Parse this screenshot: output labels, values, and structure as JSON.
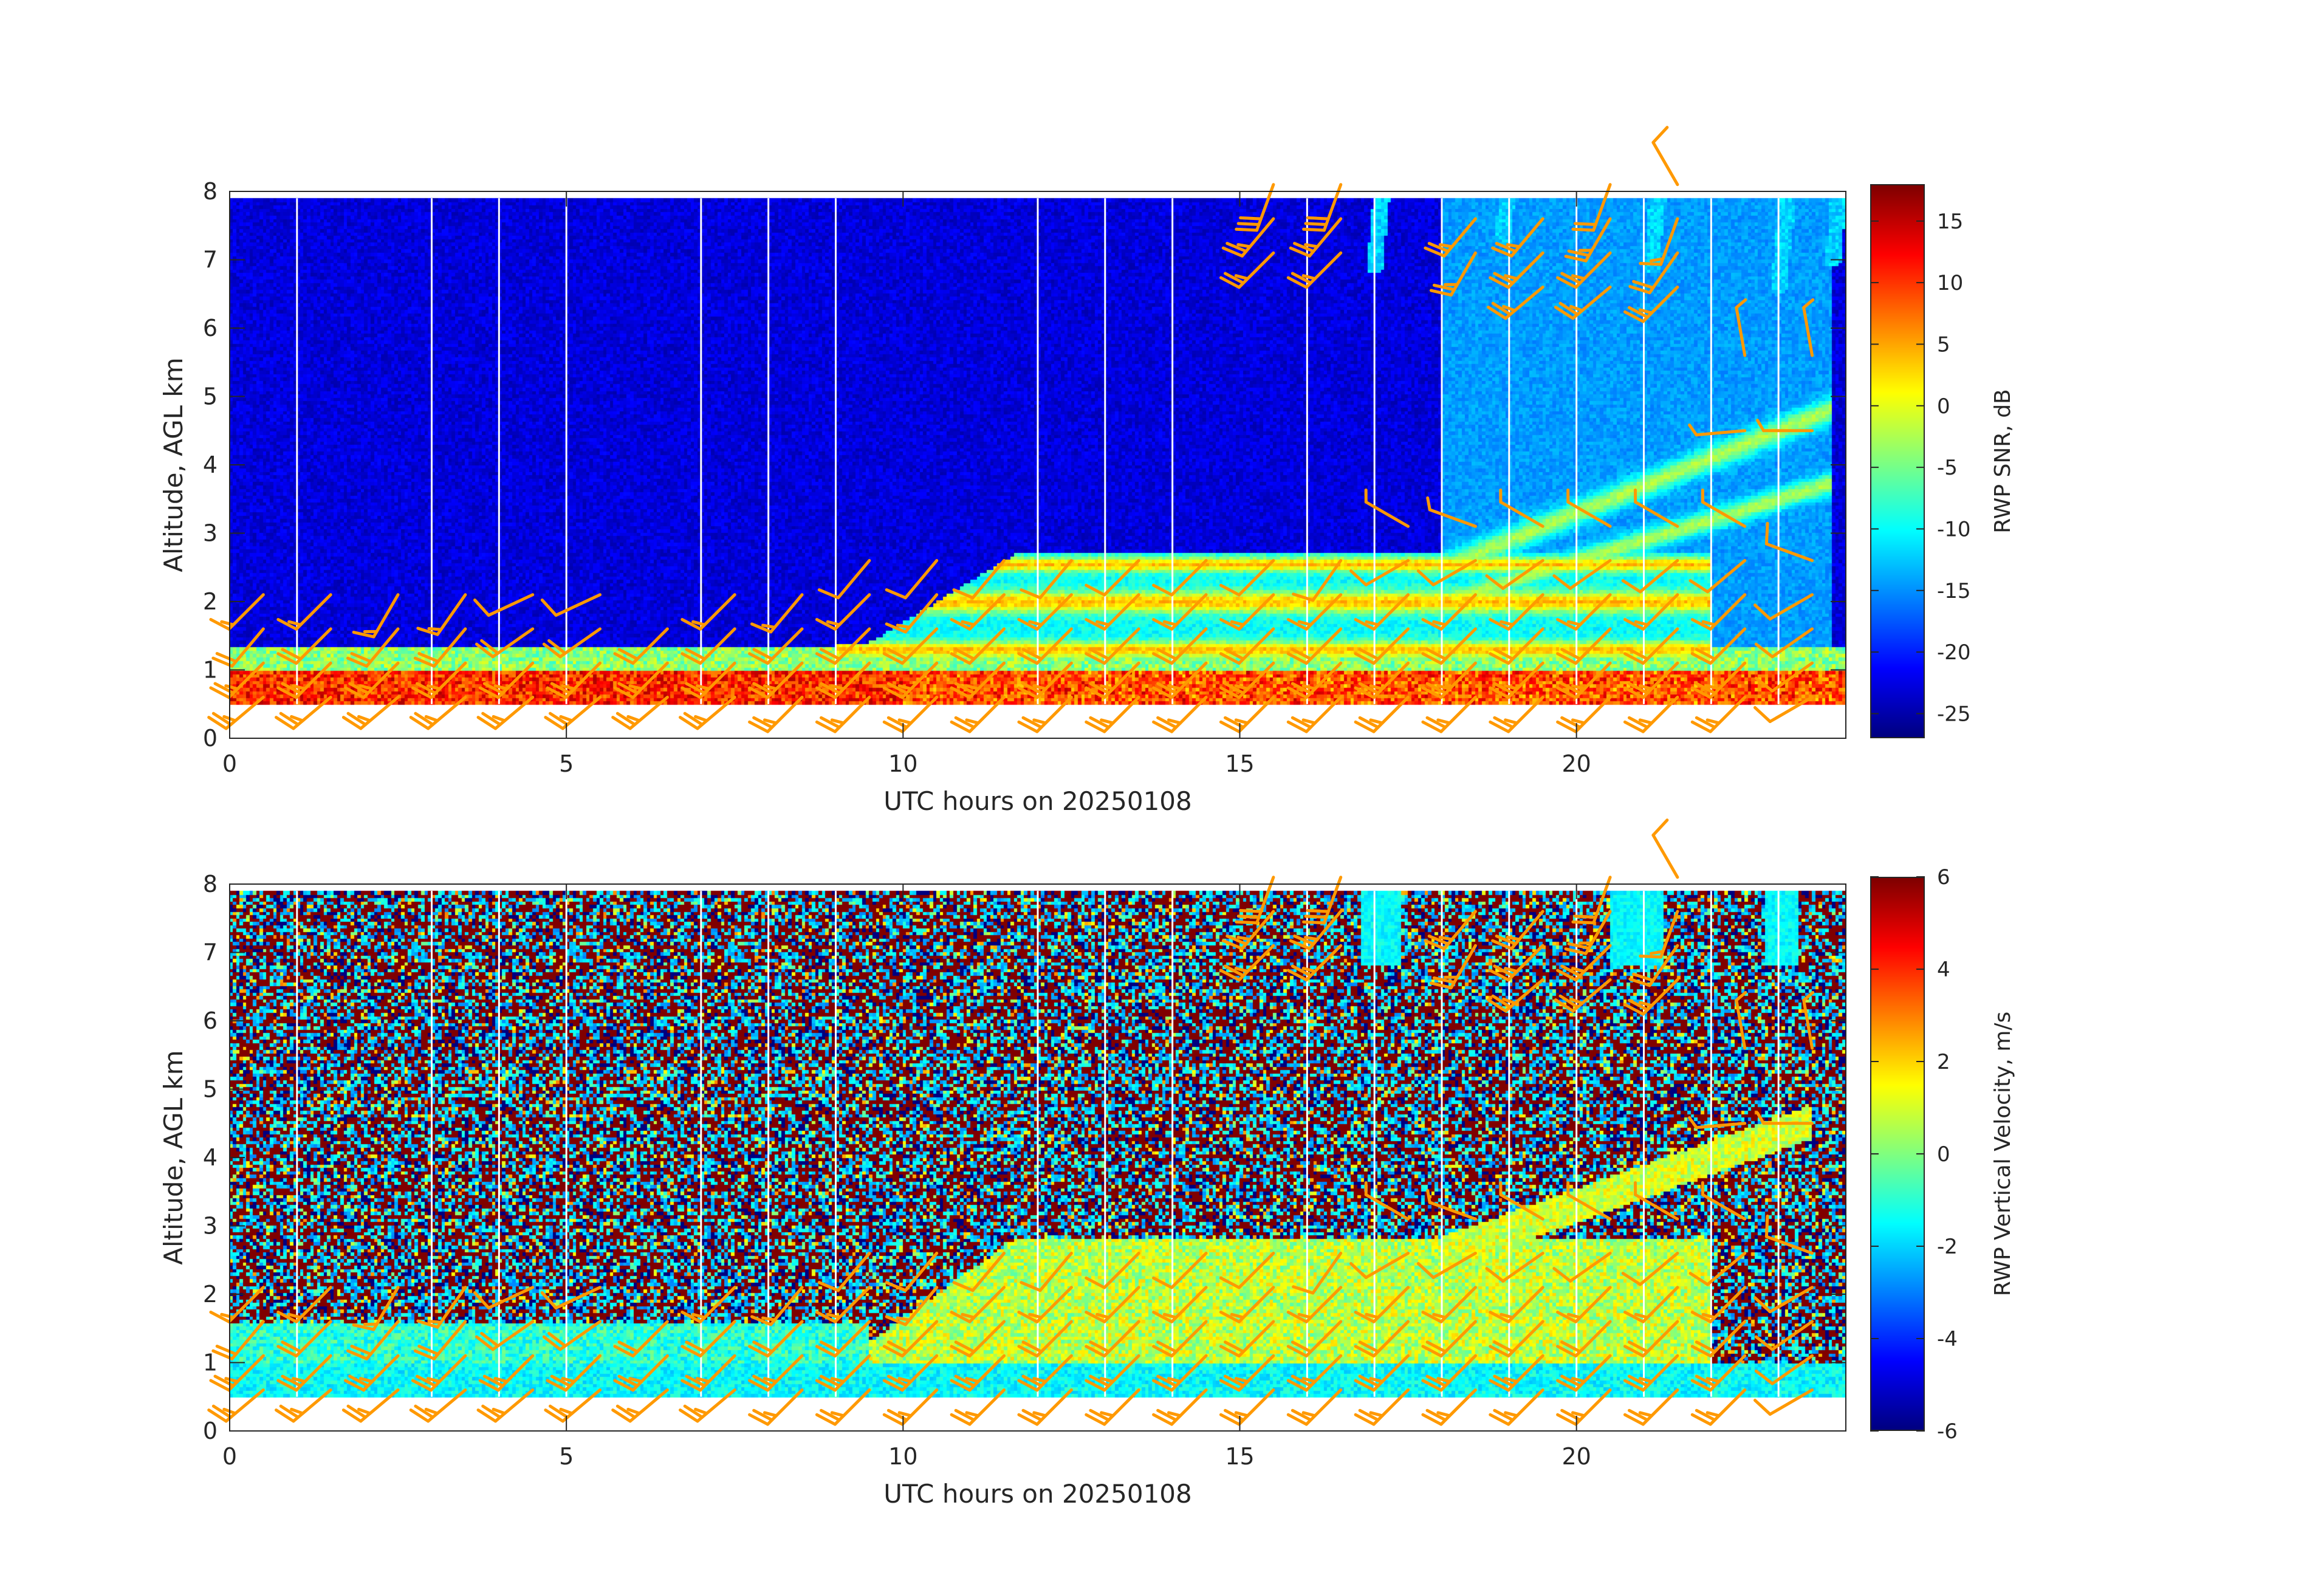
{
  "figure": {
    "background": "#ffffff",
    "barb_color": "#ff9900"
  },
  "chart_data": [
    {
      "type": "heatmap",
      "name": "top",
      "xlabel": "UTC hours on 20250108",
      "ylabel": "Altitude, AGL km",
      "colorbar_label": "RWP SNR, dB",
      "xlim": [
        0,
        24
      ],
      "ylim": [
        0,
        8
      ],
      "xticks": [
        0,
        5,
        10,
        15,
        20
      ],
      "yticks": [
        0,
        1,
        2,
        3,
        4,
        5,
        6,
        7,
        8
      ],
      "clim": [
        -27,
        18
      ],
      "cbar_ticks": [
        -25,
        -20,
        -15,
        -10,
        -5,
        0,
        5,
        10,
        15
      ],
      "colormap": "jet",
      "data_altitude_range": [
        0.5,
        7.9
      ],
      "grid": false,
      "signal_features": [
        {
          "feature": "boundary-layer high SNR band",
          "hours": [
            0,
            24
          ],
          "altitude_km": [
            0.5,
            1.0
          ],
          "snr_db": 10
        },
        {
          "feature": "elevated layer",
          "hours": [
            9.5,
            22
          ],
          "altitude_km": [
            1.2,
            2.7
          ],
          "snr_db": 0
        },
        {
          "feature": "sloping layer",
          "hours": [
            18,
            23.5
          ],
          "altitude_km": [
            2.5,
            5.0
          ],
          "snr_db": -5
        },
        {
          "feature": "upper clear-air",
          "hours": [
            0,
            24
          ],
          "altitude_km": [
            2.5,
            7.9
          ],
          "snr_db": -23
        }
      ]
    },
    {
      "type": "heatmap",
      "name": "bottom",
      "xlabel": "UTC hours on 20250108",
      "ylabel": "Altitude, AGL km",
      "colorbar_label": "RWP Vertical Velocity, m/s",
      "xlim": [
        0,
        24
      ],
      "ylim": [
        0,
        8
      ],
      "xticks": [
        0,
        5,
        10,
        15,
        20
      ],
      "yticks": [
        0,
        1,
        2,
        3,
        4,
        5,
        6,
        7,
        8
      ],
      "clim": [
        -6,
        6
      ],
      "cbar_ticks": [
        -6,
        -4,
        -2,
        0,
        2,
        4,
        6
      ],
      "colormap": "jet",
      "data_altitude_range": [
        0.5,
        7.9
      ],
      "grid": false
    }
  ],
  "wind_barbs": {
    "units": "knots",
    "barb_times_hours": [
      0.5,
      1.5,
      2.5,
      3.5,
      4.5,
      5.5,
      6.5,
      7.5,
      8.5,
      9.5,
      10.5,
      11.5,
      12.5,
      13.5,
      14.5,
      15.5,
      16.5,
      17.5,
      18.5,
      19.5,
      20.5,
      21.5,
      22.5,
      23.5
    ],
    "vertical_line_hours": [
      1,
      3,
      4,
      5,
      7,
      8,
      9,
      12,
      13,
      14,
      16,
      17,
      18,
      19,
      20,
      21,
      22,
      23
    ],
    "barbs": [
      {
        "t": 0.5,
        "levels": [
          [
            0.6,
            230,
            25
          ],
          [
            1.1,
            225,
            25
          ],
          [
            1.6,
            220,
            20
          ],
          [
            2.1,
            225,
            15
          ]
        ]
      },
      {
        "t": 1.5,
        "levels": [
          [
            0.6,
            230,
            25
          ],
          [
            1.1,
            225,
            25
          ],
          [
            1.6,
            225,
            20
          ],
          [
            2.1,
            225,
            15
          ]
        ]
      },
      {
        "t": 2.5,
        "levels": [
          [
            0.6,
            230,
            25
          ],
          [
            1.1,
            225,
            25
          ],
          [
            1.6,
            220,
            20
          ],
          [
            2.1,
            210,
            15
          ]
        ]
      },
      {
        "t": 3.5,
        "levels": [
          [
            0.6,
            230,
            25
          ],
          [
            1.1,
            225,
            25
          ],
          [
            1.6,
            220,
            20
          ],
          [
            2.1,
            215,
            15
          ]
        ]
      },
      {
        "t": 4.5,
        "levels": [
          [
            0.6,
            230,
            25
          ],
          [
            1.1,
            225,
            25
          ],
          [
            1.6,
            235,
            20
          ],
          [
            2.1,
            245,
            10
          ]
        ]
      },
      {
        "t": 5.5,
        "levels": [
          [
            0.6,
            230,
            25
          ],
          [
            1.1,
            225,
            25
          ],
          [
            1.6,
            235,
            20
          ],
          [
            2.1,
            245,
            10
          ]
        ]
      },
      {
        "t": 6.5,
        "levels": [
          [
            0.6,
            230,
            25
          ],
          [
            1.1,
            225,
            25
          ],
          [
            1.6,
            225,
            20
          ]
        ]
      },
      {
        "t": 7.5,
        "levels": [
          [
            0.6,
            230,
            25
          ],
          [
            1.1,
            225,
            25
          ],
          [
            1.6,
            225,
            20
          ],
          [
            2.1,
            225,
            15
          ]
        ]
      },
      {
        "t": 8.5,
        "levels": [
          [
            0.6,
            225,
            25
          ],
          [
            1.1,
            225,
            25
          ],
          [
            1.6,
            225,
            20
          ],
          [
            2.1,
            220,
            15
          ]
        ]
      },
      {
        "t": 9.5,
        "levels": [
          [
            0.6,
            225,
            25
          ],
          [
            1.1,
            225,
            25
          ],
          [
            1.6,
            225,
            20
          ],
          [
            2.1,
            225,
            15
          ],
          [
            2.6,
            220,
            10
          ]
        ]
      },
      {
        "t": 10.5,
        "levels": [
          [
            0.6,
            225,
            25
          ],
          [
            1.1,
            225,
            25
          ],
          [
            1.6,
            225,
            20
          ],
          [
            2.1,
            220,
            15
          ],
          [
            2.6,
            220,
            10
          ]
        ]
      },
      {
        "t": 11.5,
        "levels": [
          [
            0.6,
            225,
            25
          ],
          [
            1.1,
            225,
            25
          ],
          [
            1.6,
            225,
            20
          ],
          [
            2.1,
            225,
            15
          ],
          [
            2.6,
            220,
            10
          ]
        ]
      },
      {
        "t": 12.5,
        "levels": [
          [
            0.6,
            225,
            25
          ],
          [
            1.1,
            225,
            25
          ],
          [
            1.6,
            225,
            20
          ],
          [
            2.1,
            225,
            15
          ],
          [
            2.6,
            220,
            10
          ]
        ]
      },
      {
        "t": 13.5,
        "levels": [
          [
            0.6,
            225,
            25
          ],
          [
            1.1,
            225,
            25
          ],
          [
            1.6,
            225,
            20
          ],
          [
            2.1,
            225,
            15
          ],
          [
            2.6,
            225,
            10
          ]
        ]
      },
      {
        "t": 14.5,
        "levels": [
          [
            0.6,
            225,
            25
          ],
          [
            1.1,
            225,
            25
          ],
          [
            1.6,
            225,
            20
          ],
          [
            2.1,
            225,
            15
          ],
          [
            2.6,
            225,
            10
          ]
        ]
      },
      {
        "t": 15.5,
        "levels": [
          [
            0.6,
            225,
            25
          ],
          [
            1.1,
            225,
            25
          ],
          [
            1.6,
            225,
            20
          ],
          [
            2.1,
            225,
            15
          ],
          [
            2.6,
            225,
            10
          ],
          [
            7.1,
            225,
            25
          ],
          [
            7.6,
            220,
            25
          ],
          [
            8.1,
            200,
            30
          ]
        ]
      },
      {
        "t": 16.5,
        "levels": [
          [
            0.6,
            225,
            25
          ],
          [
            1.1,
            225,
            25
          ],
          [
            1.6,
            225,
            20
          ],
          [
            2.1,
            225,
            15
          ],
          [
            2.6,
            215,
            10
          ],
          [
            7.1,
            225,
            25
          ],
          [
            7.6,
            220,
            25
          ],
          [
            8.1,
            200,
            30
          ]
        ]
      },
      {
        "t": 17.5,
        "levels": [
          [
            0.6,
            225,
            25
          ],
          [
            1.1,
            225,
            25
          ],
          [
            1.6,
            225,
            20
          ],
          [
            2.1,
            225,
            15
          ],
          [
            2.6,
            240,
            10
          ],
          [
            3.1,
            300,
            5
          ]
        ]
      },
      {
        "t": 18.5,
        "levels": [
          [
            0.6,
            225,
            25
          ],
          [
            1.1,
            225,
            25
          ],
          [
            1.6,
            225,
            20
          ],
          [
            2.1,
            225,
            15
          ],
          [
            2.6,
            240,
            10
          ],
          [
            3.1,
            290,
            5
          ],
          [
            7.1,
            210,
            25
          ],
          [
            7.6,
            220,
            25
          ]
        ]
      },
      {
        "t": 19.5,
        "levels": [
          [
            0.6,
            225,
            25
          ],
          [
            1.1,
            225,
            25
          ],
          [
            1.6,
            225,
            20
          ],
          [
            2.1,
            225,
            15
          ],
          [
            2.6,
            235,
            10
          ],
          [
            3.1,
            300,
            5
          ],
          [
            6.6,
            230,
            25
          ],
          [
            7.1,
            225,
            25
          ],
          [
            7.6,
            220,
            25
          ]
        ]
      },
      {
        "t": 20.5,
        "levels": [
          [
            0.6,
            225,
            25
          ],
          [
            1.1,
            225,
            25
          ],
          [
            1.6,
            225,
            20
          ],
          [
            2.1,
            225,
            15
          ],
          [
            2.6,
            235,
            10
          ],
          [
            3.1,
            300,
            5
          ],
          [
            6.6,
            230,
            25
          ],
          [
            7.1,
            225,
            25
          ],
          [
            7.6,
            210,
            25
          ],
          [
            8.1,
            200,
            20
          ]
        ]
      },
      {
        "t": 21.5,
        "levels": [
          [
            0.6,
            225,
            25
          ],
          [
            1.1,
            225,
            25
          ],
          [
            1.6,
            225,
            20
          ],
          [
            2.1,
            225,
            15
          ],
          [
            2.6,
            230,
            10
          ],
          [
            3.1,
            300,
            5
          ],
          [
            6.6,
            225,
            25
          ],
          [
            7.1,
            215,
            20
          ],
          [
            7.6,
            200,
            15
          ],
          [
            8.1,
            330,
            10
          ]
        ]
      },
      {
        "t": 22.5,
        "levels": [
          [
            0.6,
            225,
            25
          ],
          [
            1.1,
            225,
            25
          ],
          [
            1.6,
            225,
            20
          ],
          [
            2.1,
            225,
            15
          ],
          [
            2.6,
            230,
            10
          ],
          [
            3.1,
            300,
            5
          ],
          [
            4.5,
            265,
            5
          ],
          [
            5.6,
            350,
            5
          ]
        ]
      },
      {
        "t": 23.5,
        "levels": [
          [
            0.6,
            240,
            10
          ],
          [
            1.1,
            235,
            10
          ],
          [
            1.6,
            235,
            10
          ],
          [
            2.1,
            240,
            10
          ],
          [
            2.6,
            290,
            10
          ],
          [
            4.5,
            270,
            5
          ],
          [
            5.6,
            350,
            5
          ]
        ]
      }
    ]
  }
}
